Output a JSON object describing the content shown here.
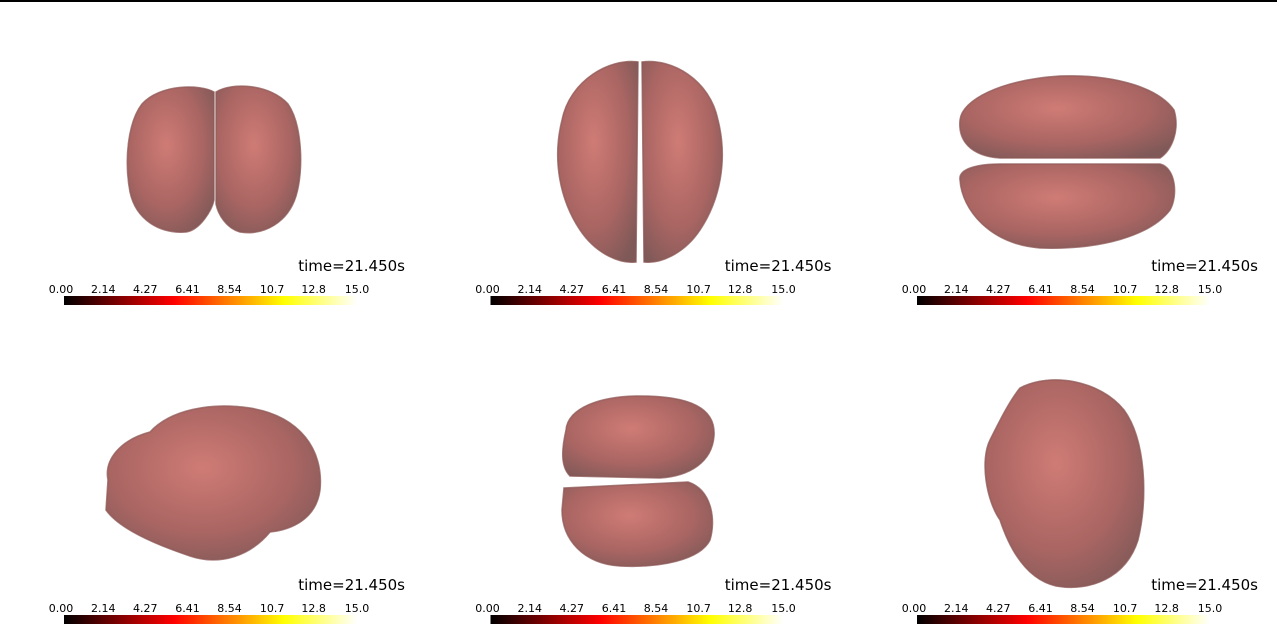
{
  "panels": [
    {
      "time_label": "time=21.450s",
      "colorbar": {
        "colormap": "hot",
        "lim": [
          0,
          15
        ],
        "ticks": [
          {
            "value": 0,
            "label": "0.00"
          },
          2.14,
          4.27,
          6.41,
          8.54,
          10.7,
          12.8,
          {
            "value": 15,
            "label": "15.0"
          }
        ]
      }
    },
    {
      "time_label": "time=21.450s",
      "colorbar": {
        "colormap": "hot",
        "lim": [
          0,
          15
        ],
        "ticks": [
          {
            "value": 0,
            "label": "0.00"
          },
          2.14,
          4.27,
          6.41,
          8.54,
          10.7,
          12.8,
          {
            "value": 15,
            "label": "15.0"
          }
        ]
      }
    },
    {
      "time_label": "time=21.450s",
      "colorbar": {
        "colormap": "hot",
        "lim": [
          0,
          15
        ],
        "ticks": [
          {
            "value": 0,
            "label": "0.00"
          },
          2.14,
          4.27,
          6.41,
          8.54,
          10.7,
          12.8,
          {
            "value": 15,
            "label": "15.0"
          }
        ]
      }
    },
    {
      "time_label": "time=21.450s",
      "colorbar": {
        "colormap": "hot",
        "lim": [
          0,
          15
        ],
        "ticks": [
          {
            "value": 0,
            "label": "0.00"
          },
          2.14,
          4.27,
          6.41,
          8.54,
          10.7,
          12.8,
          {
            "value": 15,
            "label": "15.0"
          }
        ]
      }
    },
    {
      "time_label": "time=21.450s",
      "colorbar": {
        "colormap": "hot",
        "lim": [
          0,
          15
        ],
        "ticks": [
          {
            "value": 0,
            "label": "0.00"
          },
          2.14,
          4.27,
          6.41,
          8.54,
          10.7,
          12.8,
          {
            "value": 15,
            "label": "15.0"
          }
        ]
      }
    },
    {
      "time_label": "time=21.450s",
      "colorbar": {
        "colormap": "hot",
        "lim": [
          0,
          15
        ],
        "ticks": [
          {
            "value": 0,
            "label": "0.00"
          },
          2.14,
          4.27,
          6.41,
          8.54,
          10.7,
          12.8,
          {
            "value": 15,
            "label": "15.0"
          }
        ]
      }
    }
  ]
}
